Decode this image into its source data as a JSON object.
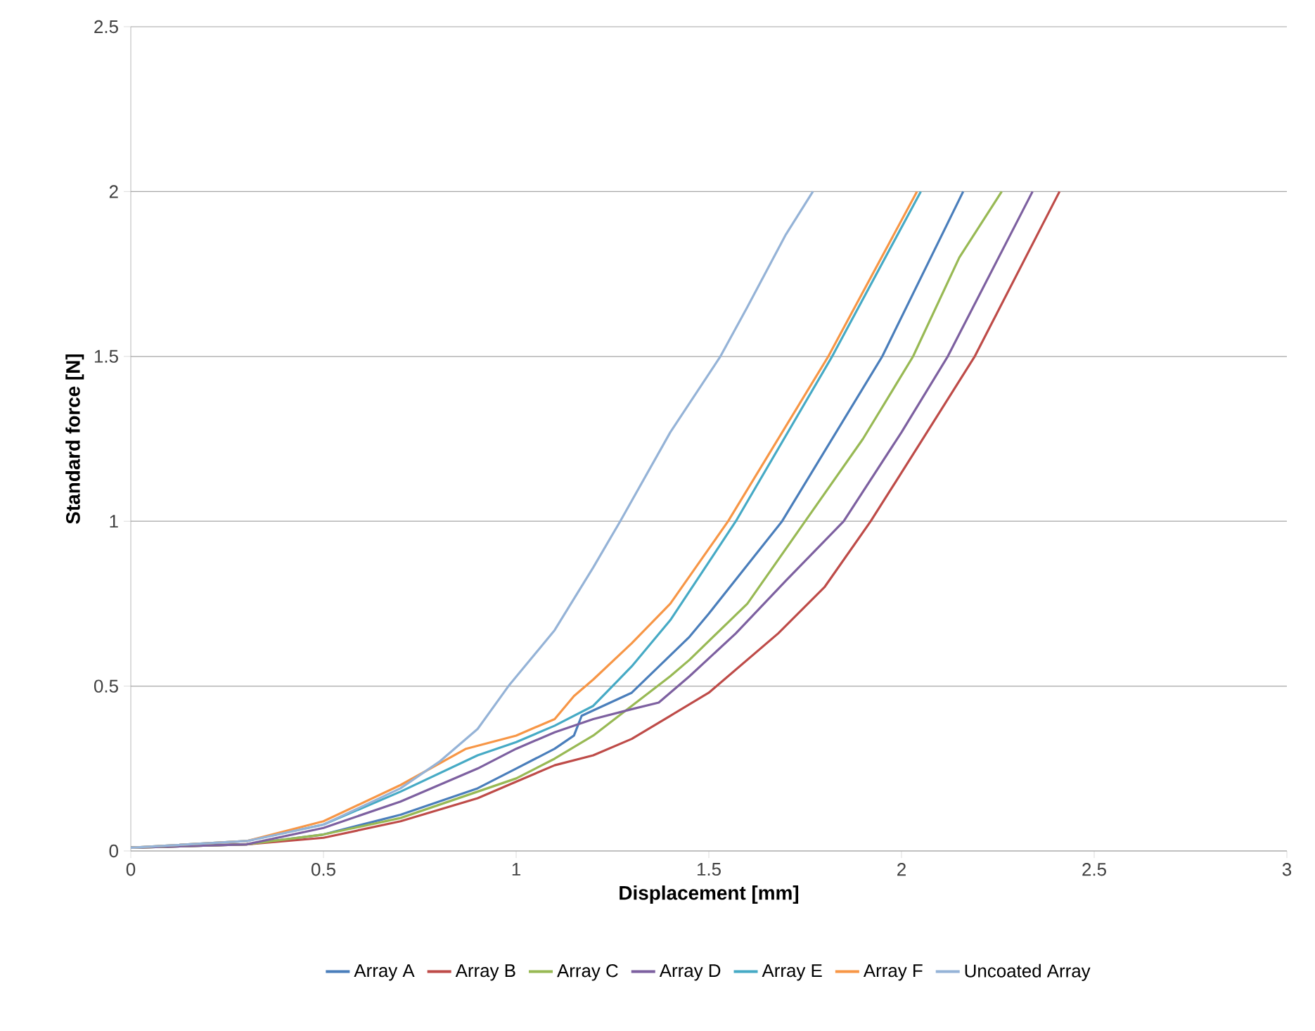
{
  "chart_data": {
    "type": "line",
    "xlabel": "Displacement [mm]",
    "ylabel": "Standard force [N]",
    "xlim": [
      0,
      3
    ],
    "ylim": [
      0,
      2.5
    ],
    "xticks": [
      0,
      0.5,
      1,
      1.5,
      2,
      2.5,
      3
    ],
    "yticks": [
      0,
      0.5,
      1,
      1.5,
      2,
      2.5
    ],
    "grid": "y",
    "legend": "bottom",
    "marker": "none",
    "line_style": "solid",
    "series": [
      {
        "name": "Array A",
        "color": "#4a7ebb",
        "x": [
          0,
          0.3,
          0.5,
          0.7,
          0.9,
          1.0,
          1.1,
          1.15,
          1.17,
          1.3,
          1.45,
          1.5,
          1.69,
          1.95,
          2.16
        ],
        "values": [
          0.01,
          0.02,
          0.05,
          0.11,
          0.19,
          0.25,
          0.31,
          0.35,
          0.41,
          0.48,
          0.65,
          0.72,
          1.0,
          1.5,
          2.0
        ]
      },
      {
        "name": "Array B",
        "color": "#be4b48",
        "x": [
          0,
          0.3,
          0.5,
          0.7,
          0.9,
          1.0,
          1.1,
          1.2,
          1.3,
          1.4,
          1.5,
          1.68,
          1.8,
          1.92,
          2.05,
          2.19,
          2.3,
          2.41
        ],
        "values": [
          0.01,
          0.02,
          0.04,
          0.09,
          0.16,
          0.21,
          0.26,
          0.29,
          0.34,
          0.41,
          0.48,
          0.66,
          0.8,
          1.0,
          1.24,
          1.5,
          1.75,
          2.0
        ]
      },
      {
        "name": "Array C",
        "color": "#98b954",
        "x": [
          0,
          0.3,
          0.5,
          0.7,
          0.9,
          1.0,
          1.1,
          1.2,
          1.3,
          1.4,
          1.45,
          1.6,
          1.75,
          1.9,
          2.03,
          2.15,
          2.26
        ],
        "values": [
          0.01,
          0.02,
          0.05,
          0.1,
          0.18,
          0.22,
          0.28,
          0.35,
          0.44,
          0.53,
          0.58,
          0.75,
          1.0,
          1.25,
          1.5,
          1.8,
          2.0
        ]
      },
      {
        "name": "Array D",
        "color": "#7d60a0",
        "x": [
          0,
          0.3,
          0.5,
          0.7,
          0.9,
          1.0,
          1.1,
          1.2,
          1.3,
          1.37,
          1.45,
          1.57,
          1.7,
          1.85,
          2.0,
          2.12,
          2.34
        ],
        "values": [
          0.01,
          0.02,
          0.07,
          0.15,
          0.25,
          0.31,
          0.36,
          0.4,
          0.43,
          0.45,
          0.53,
          0.66,
          0.82,
          1.0,
          1.27,
          1.5,
          2.0
        ]
      },
      {
        "name": "Array E",
        "color": "#46aac5",
        "x": [
          0,
          0.3,
          0.5,
          0.7,
          0.9,
          1.0,
          1.1,
          1.2,
          1.25,
          1.3,
          1.4,
          1.57,
          1.82,
          2.05
        ],
        "values": [
          0.01,
          0.03,
          0.08,
          0.18,
          0.29,
          0.33,
          0.38,
          0.44,
          0.5,
          0.56,
          0.7,
          1.0,
          1.5,
          2.0
        ]
      },
      {
        "name": "Array F",
        "color": "#f79646",
        "x": [
          0,
          0.3,
          0.5,
          0.7,
          0.87,
          1.0,
          1.1,
          1.15,
          1.2,
          1.3,
          1.4,
          1.55,
          1.81,
          2.04
        ],
        "values": [
          0.01,
          0.03,
          0.09,
          0.2,
          0.31,
          0.35,
          0.4,
          0.47,
          0.52,
          0.63,
          0.75,
          1.0,
          1.5,
          2.0
        ]
      },
      {
        "name": "Uncoated Array",
        "color": "#95b3d7",
        "x": [
          0,
          0.3,
          0.5,
          0.7,
          0.8,
          0.9,
          0.98,
          1.1,
          1.2,
          1.27,
          1.4,
          1.53,
          1.6,
          1.7,
          1.77
        ],
        "values": [
          0.01,
          0.03,
          0.08,
          0.19,
          0.27,
          0.37,
          0.5,
          0.67,
          0.86,
          1.0,
          1.27,
          1.5,
          1.65,
          1.87,
          2.0
        ]
      }
    ]
  }
}
